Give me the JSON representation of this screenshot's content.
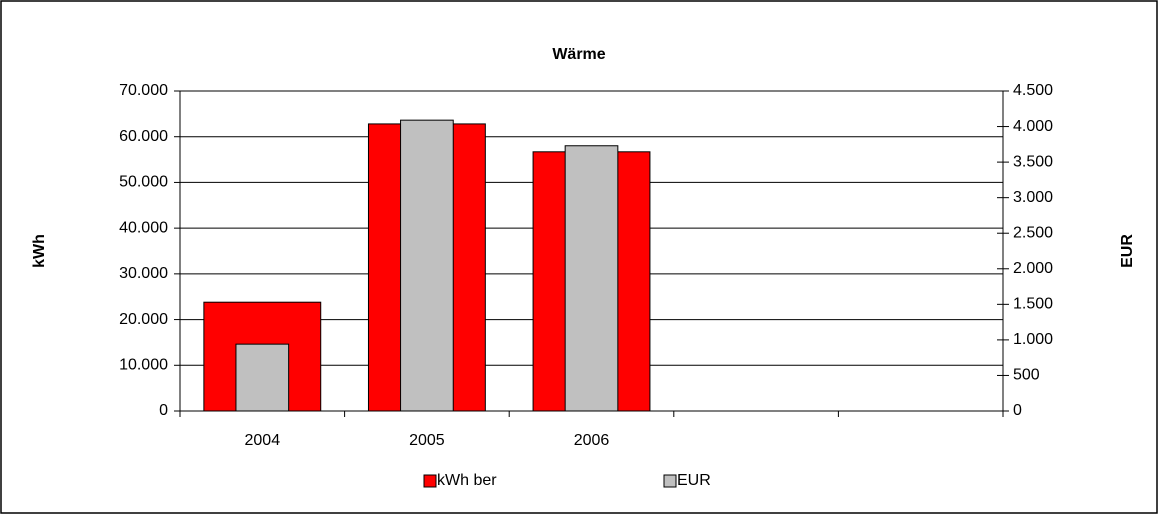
{
  "chart_data": {
    "type": "bar",
    "title": "Wärme",
    "y_label": "kWh",
    "y2_label": "EUR",
    "categories": [
      "2004",
      "2005",
      "2006",
      null,
      null
    ],
    "series": [
      {
        "name": "kWh ber",
        "color": "#ff0000",
        "values": [
          23800,
          62800,
          56700,
          null,
          null
        ]
      },
      {
        "name": "EUR",
        "color": "#c0c0c0",
        "axis": "y2",
        "values": [
          940,
          4090,
          3730,
          null,
          null
        ]
      }
    ],
    "ylim": [
      0,
      70000
    ],
    "yticks": [
      0,
      {
        "value": 10000,
        "label": "10.000"
      },
      {
        "value": 20000,
        "label": "20.000"
      },
      {
        "value": 30000,
        "label": "30.000"
      },
      {
        "value": 40000,
        "label": "40.000"
      },
      {
        "value": 50000,
        "label": "50.000"
      },
      {
        "value": 60000,
        "label": "60.000"
      },
      {
        "value": 70000,
        "label": "70.000"
      }
    ],
    "y2lim": [
      0,
      4500
    ],
    "y2ticks": [
      0,
      500,
      {
        "value": 1000,
        "label": "1.000"
      },
      {
        "value": 1500,
        "label": "1.500"
      },
      {
        "value": 2000,
        "label": "2.000"
      },
      {
        "value": 2500,
        "label": "2.500"
      },
      {
        "value": 3000,
        "label": "3.000"
      },
      {
        "value": 3500,
        "label": "3.500"
      },
      {
        "value": 4000,
        "label": "4.000"
      },
      {
        "value": 4500,
        "label": "4.500"
      }
    ],
    "grid": true,
    "legend": "bottom"
  }
}
